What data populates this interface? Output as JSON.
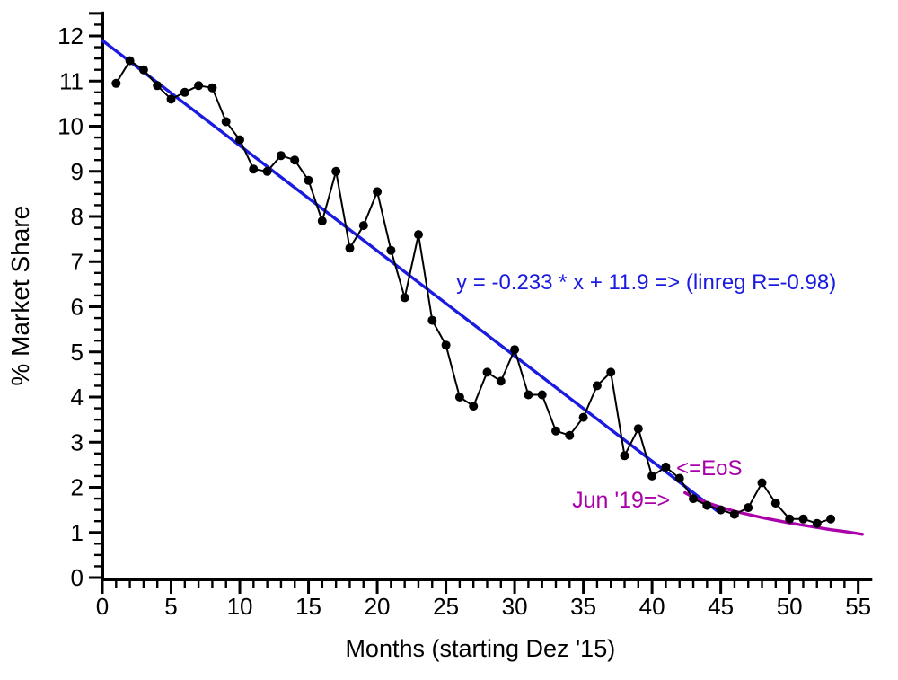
{
  "figure": {
    "background_color": "#ffffff",
    "axis_color": "#000000"
  },
  "chart_data": {
    "type": "scatter",
    "title": "",
    "xlabel": "Months (starting Dez '15)",
    "ylabel": "% Market Share",
    "xlim": [
      0,
      55.5
    ],
    "ylim": [
      0,
      12.5
    ],
    "x_major_ticks": [
      0,
      5,
      10,
      15,
      20,
      25,
      30,
      35,
      40,
      45,
      50,
      55
    ],
    "x_minor_step": 1,
    "y_major_ticks": [
      0,
      1,
      2,
      3,
      4,
      5,
      6,
      7,
      8,
      9,
      10,
      11,
      12
    ],
    "y_minor_step": 0.25,
    "grid": false,
    "legend": false,
    "series": [
      {
        "name": "market-share",
        "type": "scatter-line",
        "color": "#000000",
        "marker": "filled-circle",
        "marker_radius": 5,
        "x": [
          1,
          2,
          3,
          4,
          5,
          6,
          7,
          8,
          9,
          10,
          11,
          12,
          13,
          14,
          15,
          16,
          17,
          18,
          19,
          20,
          21,
          22,
          23,
          24,
          25,
          26,
          27,
          28,
          29,
          30,
          31,
          32,
          33,
          34,
          35,
          36,
          37,
          38,
          39,
          40,
          41,
          42,
          43,
          44,
          45,
          46,
          47,
          48,
          49,
          50,
          51,
          52,
          53
        ],
        "y": [
          10.95,
          11.45,
          11.25,
          10.9,
          10.6,
          10.75,
          10.9,
          10.85,
          10.1,
          9.7,
          9.05,
          9.0,
          9.35,
          9.25,
          8.8,
          7.9,
          9.0,
          7.3,
          7.8,
          8.55,
          7.25,
          6.2,
          7.6,
          5.7,
          5.15,
          4.0,
          3.8,
          4.55,
          4.35,
          5.05,
          4.05,
          4.05,
          3.25,
          3.15,
          3.55,
          4.25,
          4.55,
          2.7,
          3.3,
          2.25,
          2.45,
          2.2,
          1.75,
          1.6,
          1.5,
          1.4,
          1.55,
          2.1,
          1.65,
          1.3,
          1.3,
          1.2,
          1.3
        ]
      },
      {
        "name": "linear-regression",
        "type": "line",
        "color": "#1a1ae0",
        "slope": -0.233,
        "intercept": 11.9,
        "x_start": 0,
        "x_end": 44.8
      },
      {
        "name": "eos-decay-fit",
        "type": "curve",
        "color": "#aa00aa",
        "points": [
          [
            42.4,
            1.88
          ],
          [
            43,
            1.78
          ],
          [
            44,
            1.66
          ],
          [
            45,
            1.56
          ],
          [
            46,
            1.47
          ],
          [
            47,
            1.4
          ],
          [
            48,
            1.33
          ],
          [
            49,
            1.27
          ],
          [
            50,
            1.21
          ],
          [
            51,
            1.16
          ],
          [
            52,
            1.11
          ],
          [
            53,
            1.06
          ],
          [
            54,
            1.02
          ],
          [
            55.3,
            0.96
          ]
        ]
      }
    ],
    "annotations": [
      {
        "id": "regression-equation",
        "text": "y = -0.233 * x + 11.9 => (linreg R=-0.98)",
        "color": "#1a1ae0",
        "x": 25.75,
        "y": 6.39,
        "anchor": "start",
        "font_size": 24
      },
      {
        "id": "eos-label",
        "text": "<=EoS",
        "color": "#aa00aa",
        "x": 41.76,
        "y": 2.27,
        "anchor": "start",
        "font_size": 24
      },
      {
        "id": "jun19-label",
        "text": "Jun '19=>",
        "color": "#aa00aa",
        "x": 34.18,
        "y": 1.55,
        "anchor": "start",
        "font_size": 25
      }
    ]
  }
}
